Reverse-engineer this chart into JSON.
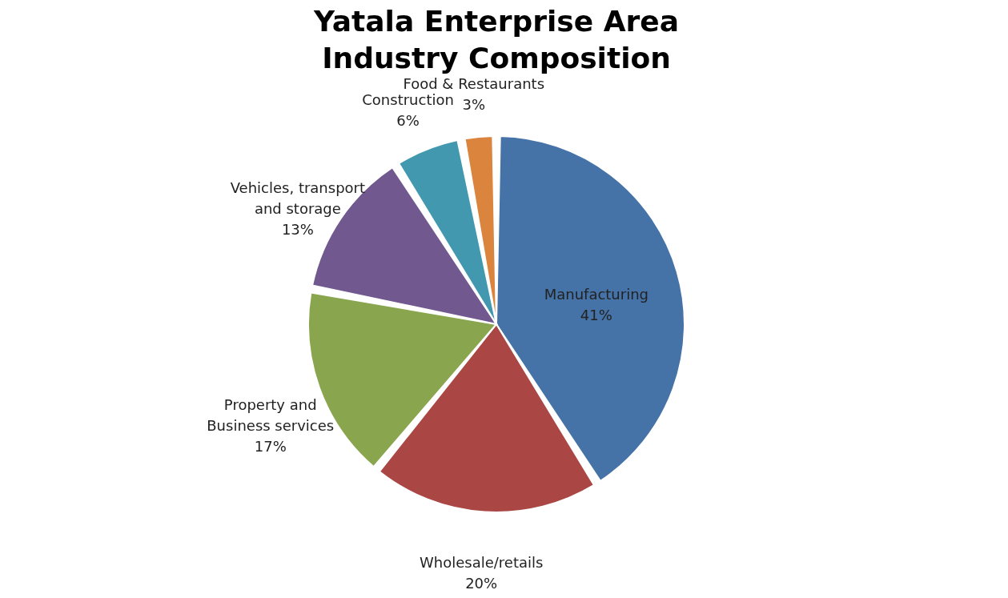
{
  "chart_data": {
    "type": "pie",
    "title": "Yatala Enterprise Area Industry Composition",
    "categories": [
      "Manufacturing",
      "Wholesale/retails",
      "Property and Business services",
      "Vehicles, transport and storage",
      "Construction",
      "Food & Restaurants"
    ],
    "values": [
      41,
      20,
      17,
      13,
      6,
      3
    ],
    "colors": [
      "#4572a7",
      "#aa4643",
      "#89a54e",
      "#71588f",
      "#4198af",
      "#db843d"
    ],
    "value_labels": [
      "41%",
      "20%",
      "17%",
      "13%",
      "6%",
      "3%"
    ],
    "legend": false
  }
}
